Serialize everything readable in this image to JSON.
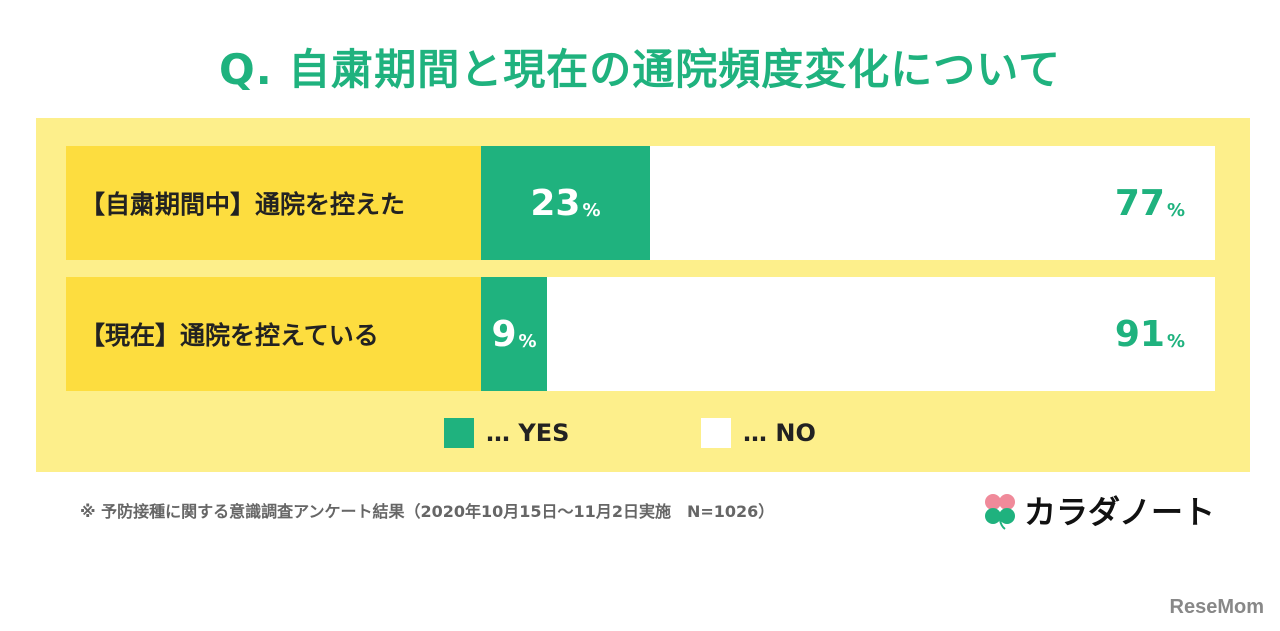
{
  "title": "Q. 自粛期間と現在の通院頻度変化について",
  "chart_data": {
    "type": "bar",
    "orientation": "horizontal-stacked-100",
    "categories": [
      "【自粛期間中】通院を控えた",
      "【現在】通院を控えている"
    ],
    "series": [
      {
        "name": "YES",
        "values": [
          23,
          9
        ],
        "labels": [
          "23",
          "9"
        ],
        "color": "#1fb27e"
      },
      {
        "name": "NO",
        "values": [
          77,
          91
        ],
        "labels": [
          "77",
          "91"
        ],
        "color": "#ffffff"
      }
    ],
    "unit": "%",
    "legend_prefix": "…",
    "legend": "bottom"
  },
  "footnote": "※ 予防接種に関する意識調査アンケート結果（2020年10月15日～11月2日実施　N=1026）",
  "logo": "カラダノート",
  "watermark": "ReseMom"
}
